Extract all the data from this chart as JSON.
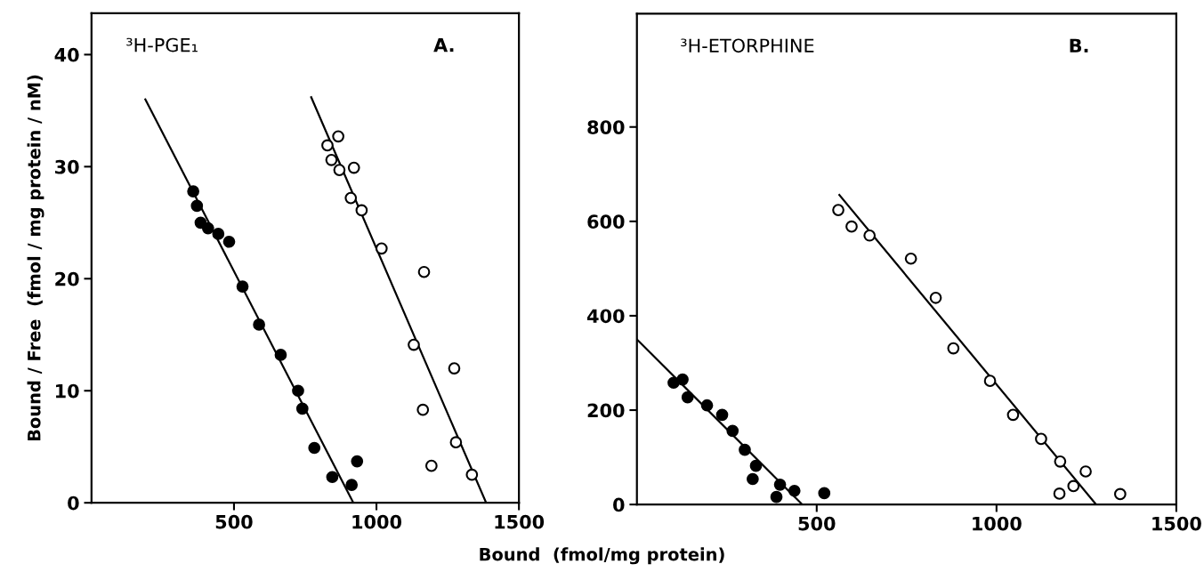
{
  "chart_data": [
    {
      "type": "scatter",
      "ylabel": "Bound / Free  (fmol / mg protein / nM)",
      "xlabel": "Bound  (fmol/mg protein)",
      "annotations": [
        "³H-PGE₁",
        "A."
      ],
      "xlim": [
        0,
        1500
      ],
      "xticks": [
        500,
        1000,
        1500
      ],
      "ylim": [
        0,
        43.7
      ],
      "yticks": [
        0,
        10,
        20,
        30,
        40
      ],
      "grid": false,
      "legend": false,
      "marker": "circle",
      "series": [
        {
          "color": "#000000",
          "x": [
            357,
            370,
            383,
            409,
            445,
            483,
            530,
            588,
            664,
            725,
            740,
            782,
            845,
            913,
            932
          ],
          "values": [
            27.8,
            26.5,
            25.0,
            24.5,
            24.0,
            23.3,
            19.3,
            15.9,
            13.2,
            10.0,
            8.4,
            4.9,
            2.3,
            1.6,
            3.7
          ]
        },
        {
          "color": "#ffffff",
          "x": [
            828,
            866,
            842,
            870,
            921,
            910,
            948,
            1018,
            1167,
            1131,
            1163,
            1273,
            1279,
            1193,
            1335
          ],
          "values": [
            31.9,
            32.7,
            30.6,
            29.7,
            29.9,
            27.2,
            26.1,
            22.7,
            20.6,
            14.1,
            8.3,
            12.0,
            5.4,
            3.3,
            2.5
          ]
        },
        {
          "type": "line",
          "marker": "none",
          "color": "#000000",
          "x": [
            189,
            919
          ],
          "values": [
            36.0,
            0
          ]
        },
        {
          "type": "line",
          "marker": "none",
          "color": "#000000",
          "x": [
            771,
            1385
          ],
          "values": [
            36.2,
            0
          ]
        }
      ]
    },
    {
      "type": "scatter",
      "annotations": [
        "³H-ETORPHINE",
        "B."
      ],
      "xlim": [
        0,
        1500
      ],
      "xticks": [
        500,
        1000,
        1500
      ],
      "ylim": [
        0,
        1040
      ],
      "yticks": [
        0,
        200,
        400,
        600,
        800
      ],
      "grid": false,
      "legend": false,
      "marker": "circle",
      "series": [
        {
          "color": "#000000",
          "x": [
            102,
            127,
            141,
            195,
            237,
            266,
            300,
            331,
            322,
            388,
            398,
            438,
            521
          ],
          "values": [
            258,
            265,
            227,
            210,
            190,
            156,
            116,
            82,
            54,
            16,
            42,
            29,
            24
          ]
        },
        {
          "color": "#ffffff",
          "x": [
            560,
            597,
            647,
            762,
            831,
            880,
            982,
            1046,
            1124,
            1177,
            1175,
            1214,
            1248,
            1344
          ],
          "values": [
            624,
            589,
            570,
            521,
            438,
            331,
            262,
            190,
            139,
            91,
            23,
            39,
            70,
            22
          ]
        },
        {
          "type": "line",
          "marker": "none",
          "color": "#000000",
          "x": [
            0,
            460
          ],
          "values": [
            350,
            0
          ]
        },
        {
          "type": "line",
          "marker": "none",
          "color": "#000000",
          "x": [
            563,
            1277
          ],
          "values": [
            656,
            0
          ]
        }
      ]
    }
  ]
}
